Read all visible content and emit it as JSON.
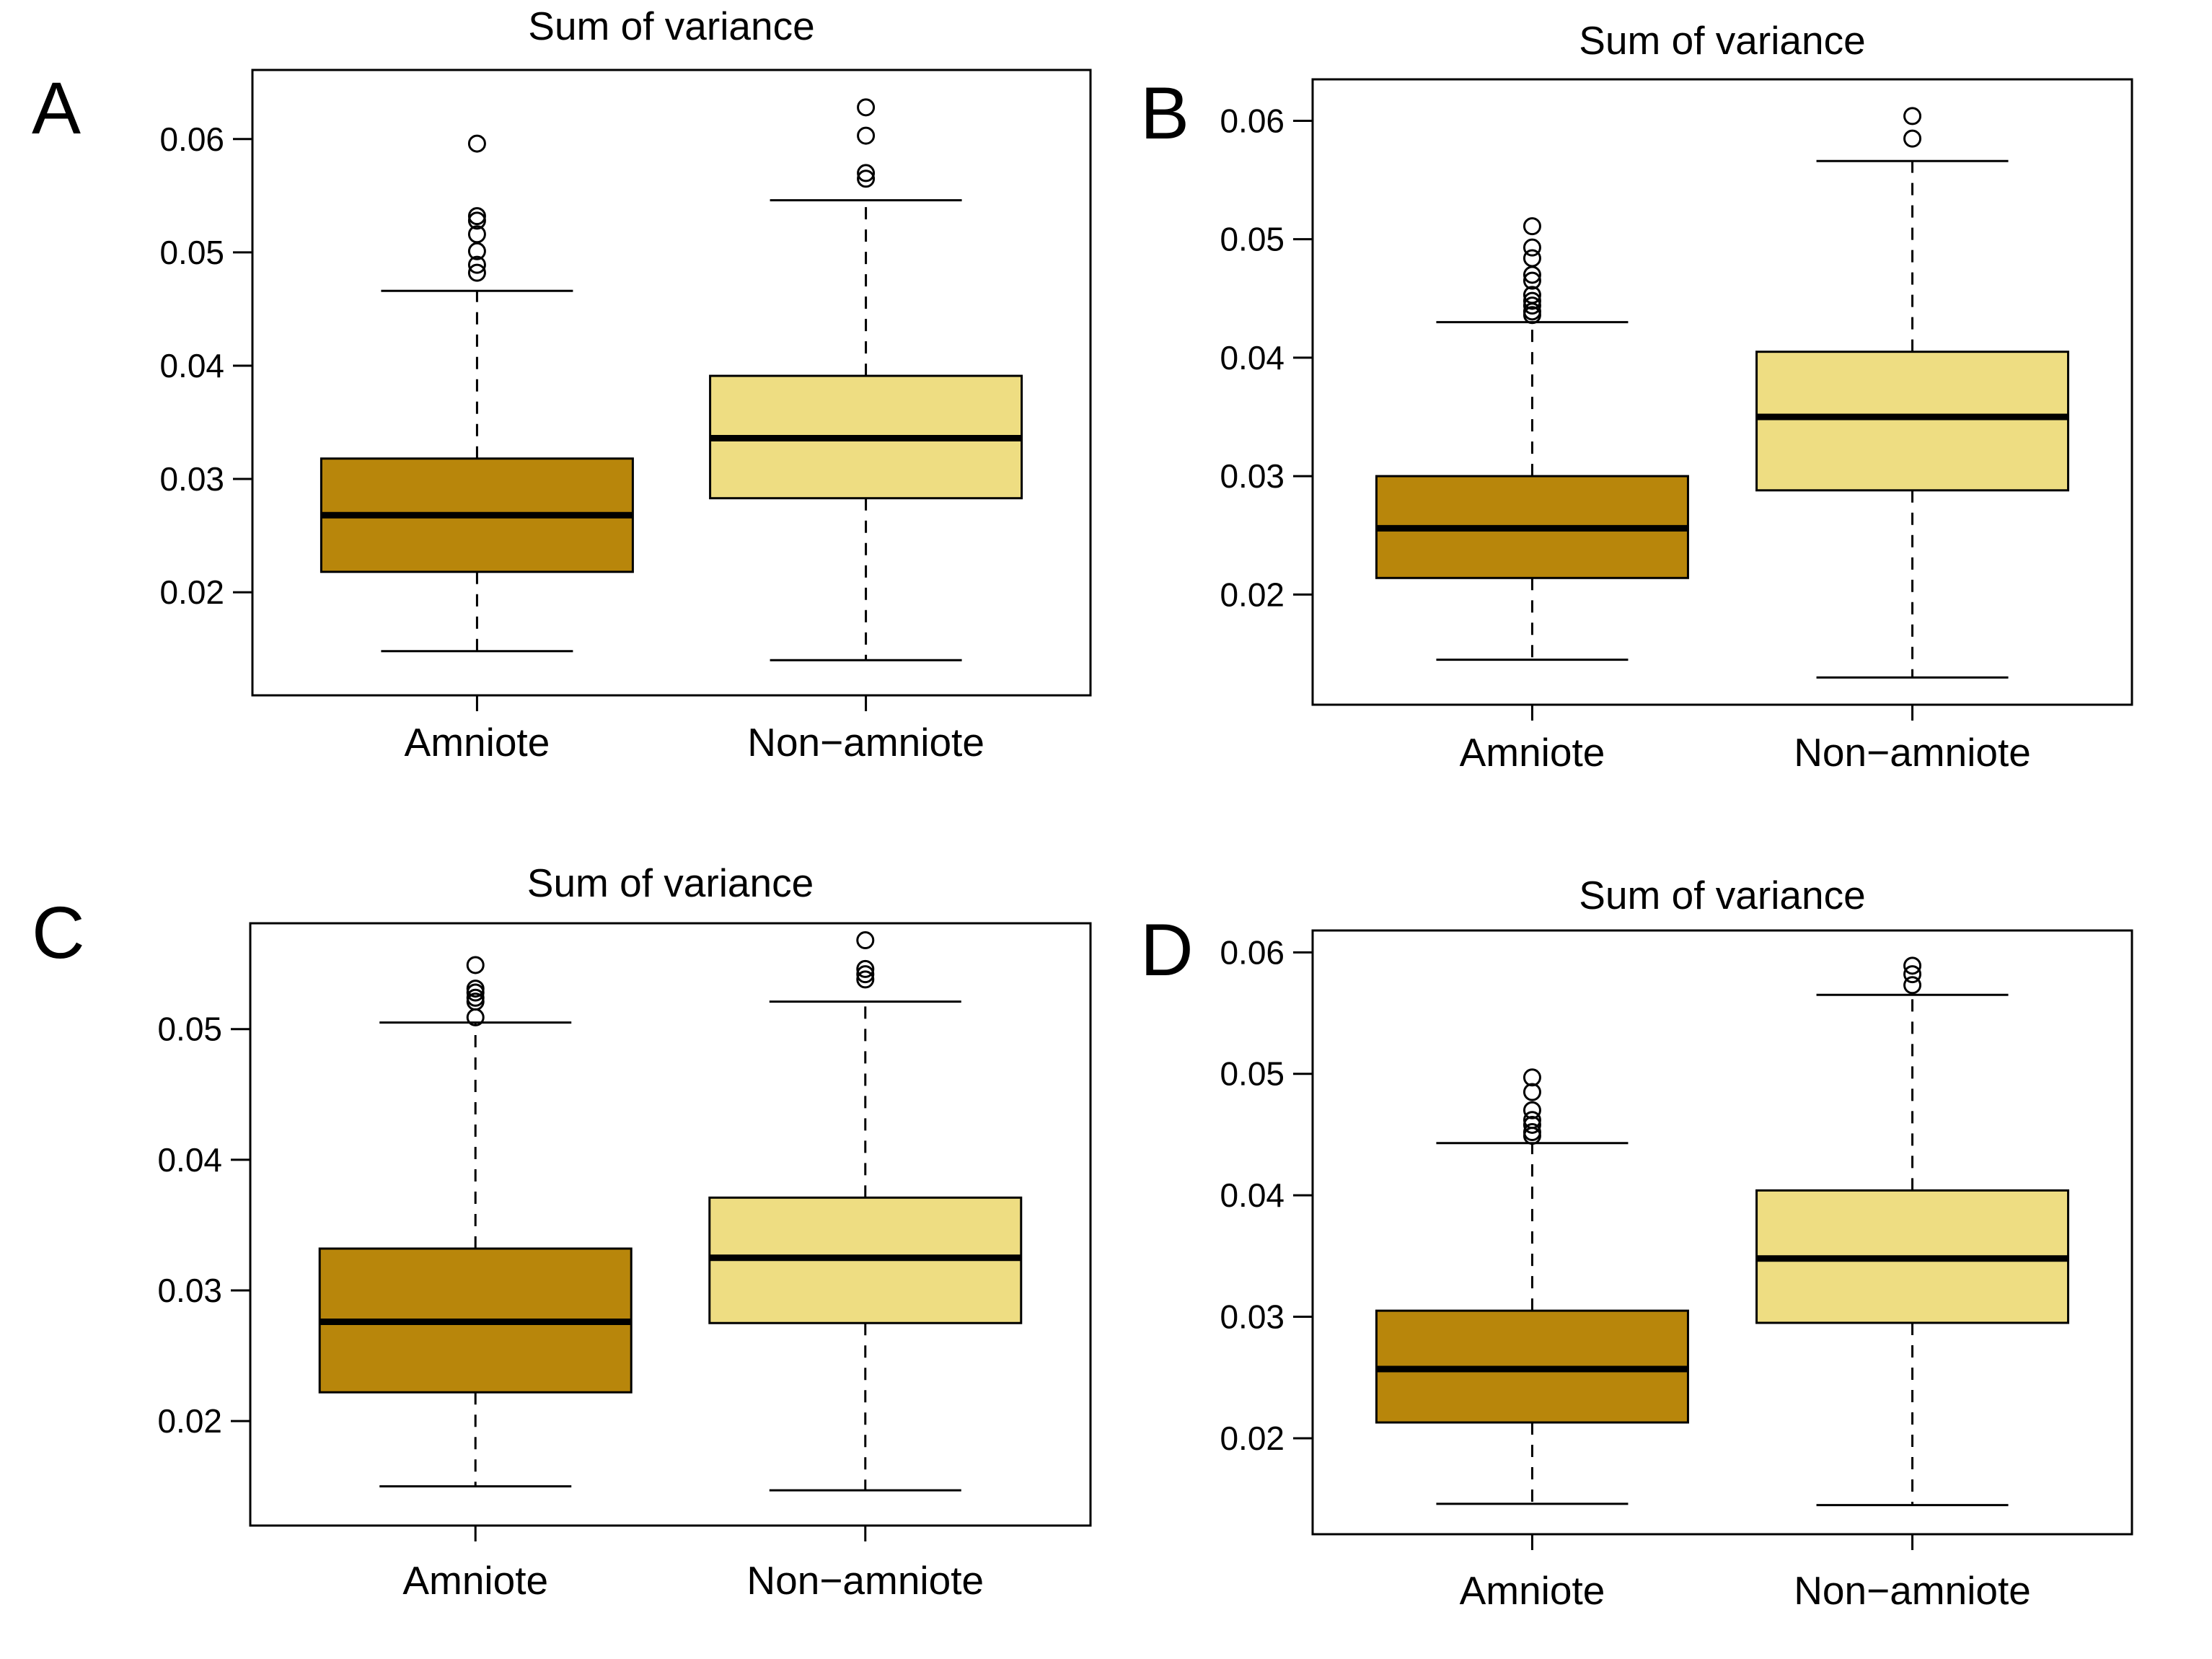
{
  "figure": {
    "background": "#ffffff"
  },
  "colors": {
    "amniote_fill": "#B8860B",
    "non_amniote_fill": "#EEDD82",
    "line": "#000000"
  },
  "chart_data": [
    {
      "panel_label": "A",
      "type": "boxplot",
      "title": "Sum of variance",
      "categories": [
        "Amniote",
        "Non−amniote"
      ],
      "ylim": [
        0.0109,
        0.0661
      ],
      "grid": false,
      "yticks": {
        "values": [
          0.02,
          0.03,
          0.04,
          0.05,
          0.06
        ],
        "labels": [
          "0.02",
          "0.03",
          "0.04",
          "0.05",
          "0.06"
        ]
      },
      "series": [
        {
          "name": "Amniote",
          "color": "#B8860B",
          "whisker_low": 0.0148,
          "q1": 0.0218,
          "median": 0.0268,
          "q3": 0.0318,
          "whisker_high": 0.0466,
          "outliers": [
            0.0482,
            0.0489,
            0.0501,
            0.0516,
            0.0528,
            0.0532,
            0.0596
          ]
        },
        {
          "name": "Non−amniote",
          "color": "#EEDD82",
          "whisker_low": 0.014,
          "q1": 0.0283,
          "median": 0.0336,
          "q3": 0.0391,
          "whisker_high": 0.0546,
          "outliers": [
            0.0565,
            0.057,
            0.0603,
            0.0628
          ]
        }
      ]
    },
    {
      "panel_label": "B",
      "type": "boxplot",
      "title": "Sum of variance",
      "categories": [
        "Amniote",
        "Non−amniote"
      ],
      "ylim": [
        0.0107,
        0.0635
      ],
      "grid": false,
      "yticks": {
        "values": [
          0.02,
          0.03,
          0.04,
          0.05,
          0.06
        ],
        "labels": [
          "0.02",
          "0.03",
          "0.04",
          "0.05",
          "0.06"
        ]
      },
      "series": [
        {
          "name": "Amniote",
          "color": "#B8860B",
          "whisker_low": 0.0145,
          "q1": 0.0214,
          "median": 0.0256,
          "q3": 0.03,
          "whisker_high": 0.043,
          "outliers": [
            0.0436,
            0.0439,
            0.0444,
            0.0448,
            0.0453,
            0.0465,
            0.047,
            0.0484,
            0.0493,
            0.0511
          ]
        },
        {
          "name": "Non−amniote",
          "color": "#EEDD82",
          "whisker_low": 0.013,
          "q1": 0.0288,
          "median": 0.035,
          "q3": 0.0405,
          "whisker_high": 0.0566,
          "outliers": [
            0.0585,
            0.0604
          ]
        }
      ]
    },
    {
      "panel_label": "C",
      "type": "boxplot",
      "title": "Sum of variance",
      "categories": [
        "Amniote",
        "Non−amniote"
      ],
      "ylim": [
        0.012,
        0.0581
      ],
      "grid": false,
      "yticks": {
        "values": [
          0.02,
          0.03,
          0.04,
          0.05
        ],
        "labels": [
          "0.02",
          "0.03",
          "0.04",
          "0.05"
        ]
      },
      "series": [
        {
          "name": "Amniote",
          "color": "#B8860B",
          "whisker_low": 0.015,
          "q1": 0.0222,
          "median": 0.0276,
          "q3": 0.0332,
          "whisker_high": 0.0505,
          "outliers": [
            0.0509,
            0.0521,
            0.0524,
            0.0528,
            0.0531,
            0.0549
          ]
        },
        {
          "name": "Non−amniote",
          "color": "#EEDD82",
          "whisker_low": 0.0147,
          "q1": 0.0275,
          "median": 0.0325,
          "q3": 0.0371,
          "whisker_high": 0.0521,
          "outliers": [
            0.0538,
            0.0542,
            0.0546,
            0.0568
          ]
        }
      ]
    },
    {
      "panel_label": "D",
      "type": "boxplot",
      "title": "Sum of variance",
      "categories": [
        "Amniote",
        "Non−amniote"
      ],
      "ylim": [
        0.0121,
        0.0618
      ],
      "grid": false,
      "yticks": {
        "values": [
          0.02,
          0.03,
          0.04,
          0.05,
          0.06
        ],
        "labels": [
          "0.02",
          "0.03",
          "0.04",
          "0.05",
          "0.06"
        ]
      },
      "series": [
        {
          "name": "Amniote",
          "color": "#B8860B",
          "whisker_low": 0.0146,
          "q1": 0.0213,
          "median": 0.0257,
          "q3": 0.0305,
          "whisker_high": 0.0443,
          "outliers": [
            0.0449,
            0.0452,
            0.0458,
            0.0462,
            0.047,
            0.0485,
            0.0497
          ]
        },
        {
          "name": "Non−amniote",
          "color": "#EEDD82",
          "whisker_low": 0.0145,
          "q1": 0.0295,
          "median": 0.0348,
          "q3": 0.0404,
          "whisker_high": 0.0565,
          "outliers": [
            0.0573,
            0.0582,
            0.0589
          ]
        }
      ]
    }
  ]
}
